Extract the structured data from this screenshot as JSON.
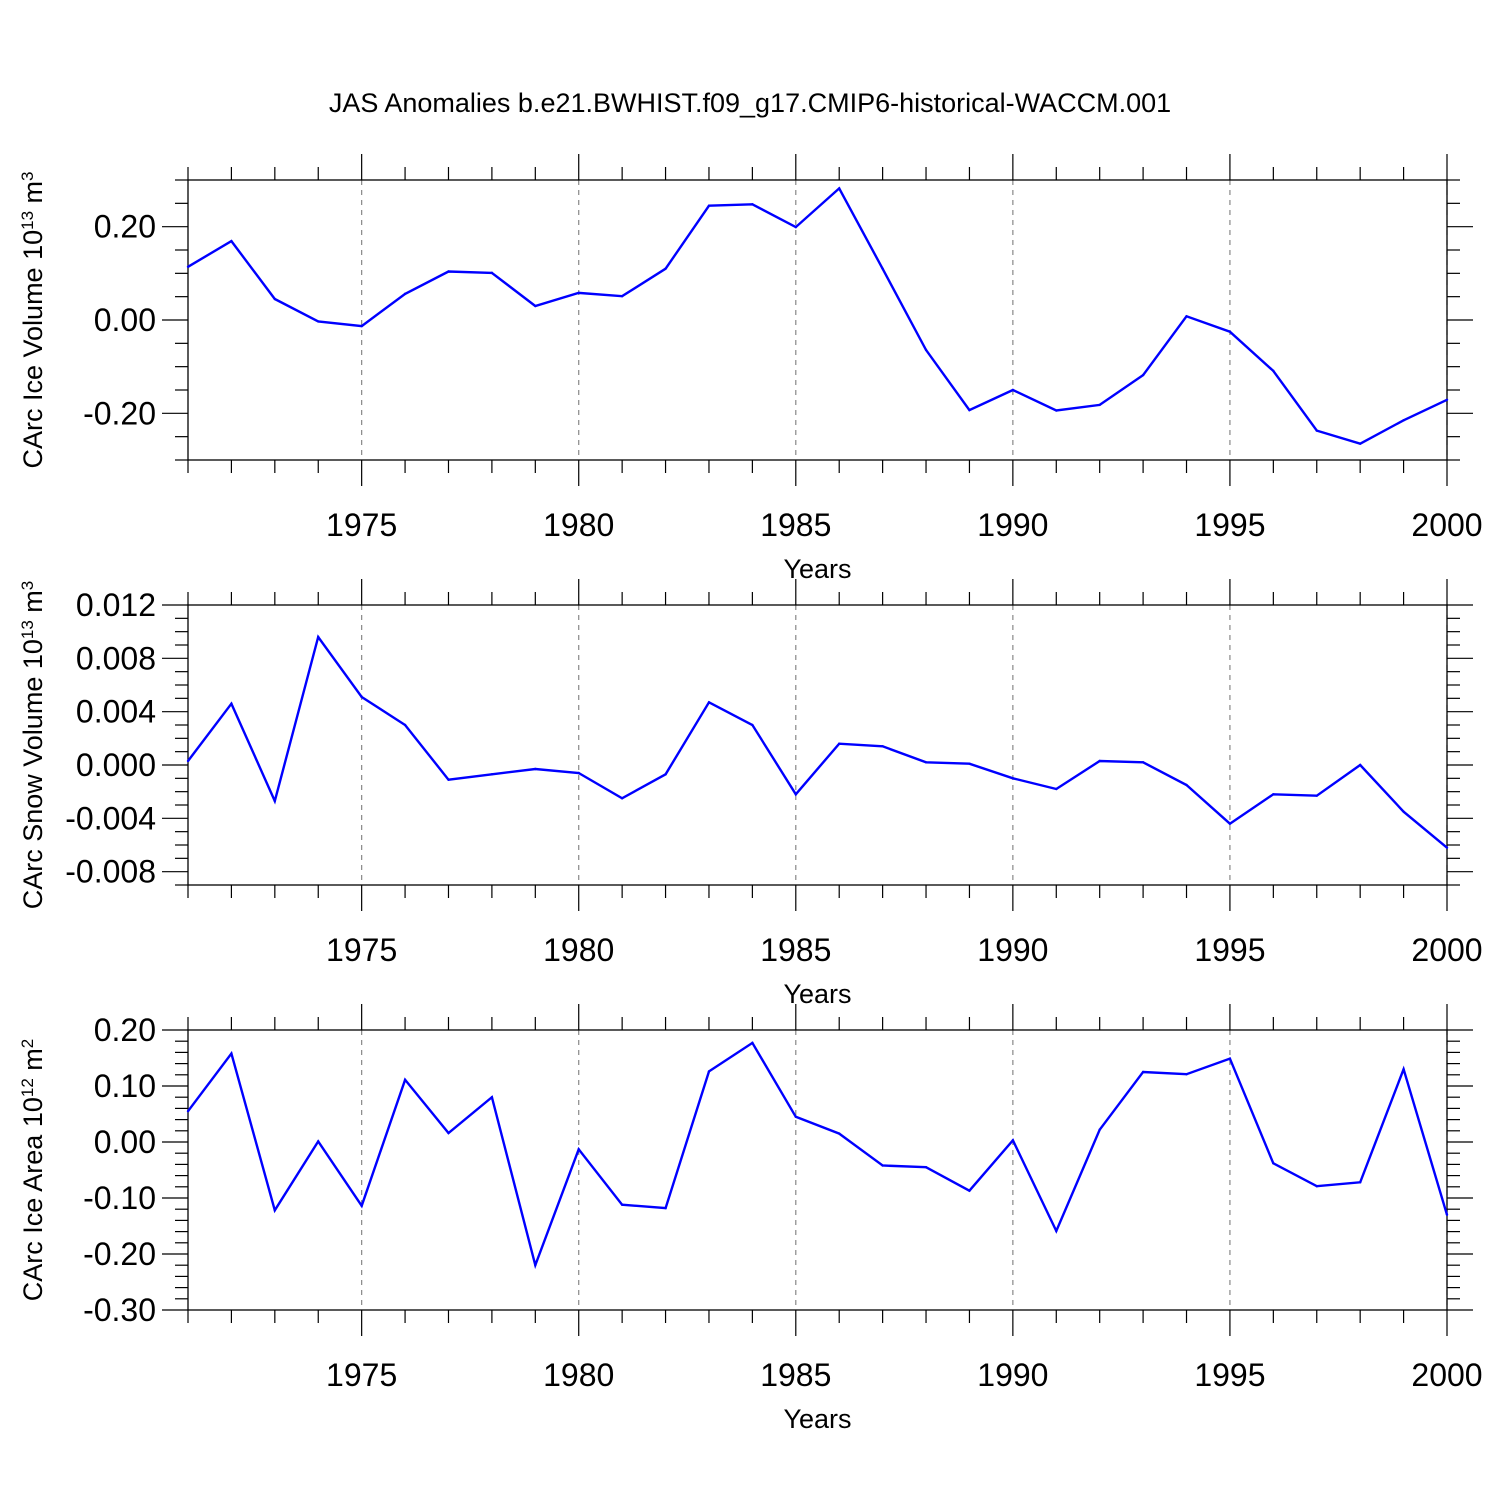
{
  "figure": {
    "title": "JAS Anomalies b.e21.BWHIST.f09_g17.CMIP6-historical-WACCM.001",
    "line_color": "#0000ff",
    "grid_color": "#888888"
  },
  "chart_data": [
    {
      "type": "line",
      "xlabel": "Years",
      "ylabel": {
        "base": "CArc Ice Volume 10",
        "sup": "13",
        "unit": " m",
        "unit_sup": "3"
      },
      "xlim": [
        1971,
        2000
      ],
      "ylim": [
        -0.3,
        0.3
      ],
      "xticks": [
        1975,
        1980,
        1985,
        1990,
        1995,
        2000
      ],
      "xtick_labels": [
        "1975",
        "1980",
        "1985",
        "1990",
        "1995",
        "2000"
      ],
      "yticks": [
        -0.2,
        0.0,
        0.2
      ],
      "ytick_labels": [
        "-0.20",
        "0.00",
        "0.20"
      ],
      "grid": "vertical dashed at major x ticks",
      "series": [
        {
          "x": [
            1971,
            1972,
            1973,
            1974,
            1975,
            1976,
            1977,
            1978,
            1979,
            1980,
            1981,
            1982,
            1983,
            1984,
            1985,
            1986,
            1987,
            1988,
            1989,
            1990,
            1991,
            1992,
            1993,
            1994,
            1995,
            1996,
            1997,
            1998,
            1999,
            2000
          ],
          "values": [
            0.114,
            0.169,
            0.045,
            -0.003,
            -0.013,
            0.056,
            0.104,
            0.101,
            0.03,
            0.058,
            0.051,
            0.11,
            0.245,
            0.248,
            0.199,
            0.282,
            0.11,
            -0.064,
            -0.193,
            -0.15,
            -0.194,
            -0.182,
            -0.118,
            0.008,
            -0.025,
            -0.109,
            -0.237,
            -0.265,
            -0.215,
            -0.171
          ]
        }
      ]
    },
    {
      "type": "line",
      "xlabel": "Years",
      "ylabel": {
        "base": "CArc Snow Volume 10",
        "sup": "13",
        "unit": " m",
        "unit_sup": "3"
      },
      "xlim": [
        1971,
        2000
      ],
      "ylim": [
        -0.009,
        0.012
      ],
      "xticks": [
        1975,
        1980,
        1985,
        1990,
        1995,
        2000
      ],
      "xtick_labels": [
        "1975",
        "1980",
        "1985",
        "1990",
        "1995",
        "2000"
      ],
      "yticks": [
        -0.008,
        -0.004,
        0.0,
        0.004,
        0.008,
        0.012
      ],
      "ytick_labels": [
        "-0.008",
        "-0.004",
        "0.000",
        "0.004",
        "0.008",
        "0.012"
      ],
      "grid": "vertical dashed at major x ticks",
      "series": [
        {
          "x": [
            1971,
            1972,
            1973,
            1974,
            1975,
            1976,
            1977,
            1978,
            1979,
            1980,
            1981,
            1982,
            1983,
            1984,
            1985,
            1986,
            1987,
            1988,
            1989,
            1990,
            1991,
            1992,
            1993,
            1994,
            1995,
            1996,
            1997,
            1998,
            1999,
            2000
          ],
          "values": [
            0.0003,
            0.0046,
            -0.0027,
            0.0096,
            0.0051,
            0.003,
            -0.0011,
            -0.0007,
            -0.0003,
            -0.0006,
            -0.0025,
            -0.0007,
            0.0047,
            0.003,
            -0.0022,
            0.0016,
            0.0014,
            0.0002,
            0.0001,
            -0.001,
            -0.0018,
            0.0003,
            0.0002,
            -0.0015,
            -0.0044,
            -0.0022,
            -0.0023,
            0.0,
            -0.0035,
            -0.0062
          ]
        }
      ]
    },
    {
      "type": "line",
      "xlabel": "Years",
      "ylabel": {
        "base": "CArc Ice Area 10",
        "sup": "12",
        "unit": " m",
        "unit_sup": "2"
      },
      "xlim": [
        1971,
        2000
      ],
      "ylim": [
        -0.3,
        0.2
      ],
      "xticks": [
        1975,
        1980,
        1985,
        1990,
        1995,
        2000
      ],
      "xtick_labels": [
        "1975",
        "1980",
        "1985",
        "1990",
        "1995",
        "2000"
      ],
      "yticks": [
        -0.3,
        -0.2,
        -0.1,
        0.0,
        0.1,
        0.2
      ],
      "ytick_labels": [
        "-0.30",
        "-0.20",
        "-0.10",
        "0.00",
        "0.10",
        "0.20"
      ],
      "grid": "vertical dashed at major x ticks",
      "series": [
        {
          "x": [
            1971,
            1972,
            1973,
            1974,
            1975,
            1976,
            1977,
            1978,
            1979,
            1980,
            1981,
            1982,
            1983,
            1984,
            1985,
            1986,
            1987,
            1988,
            1989,
            1990,
            1991,
            1992,
            1993,
            1994,
            1995,
            1996,
            1997,
            1998,
            1999,
            2000
          ],
          "values": [
            0.055,
            0.158,
            -0.122,
            0.001,
            -0.114,
            0.111,
            0.016,
            0.08,
            -0.22,
            -0.013,
            -0.112,
            -0.118,
            0.126,
            0.177,
            0.045,
            0.015,
            -0.042,
            -0.045,
            -0.087,
            0.003,
            -0.159,
            0.022,
            0.125,
            0.121,
            0.149,
            -0.038,
            -0.079,
            -0.072,
            0.13,
            -0.13
          ]
        }
      ]
    }
  ]
}
